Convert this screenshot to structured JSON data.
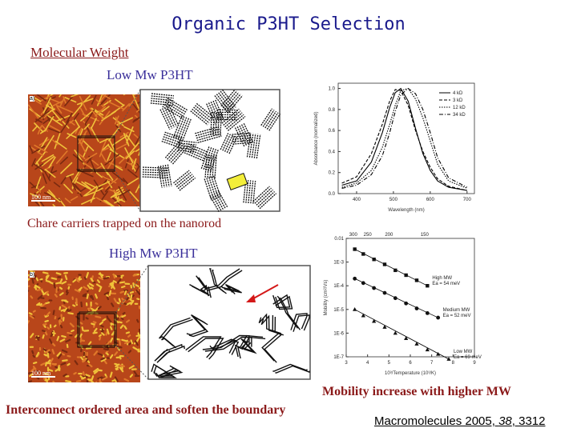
{
  "slide": {
    "title": "Organic P3HT Selection",
    "section": "Molecular Weight",
    "low_label": "Low Mw P3HT",
    "low_caption": "Chare carriers trapped on the nanorod",
    "high_label": "High Mw P3HT",
    "high_caption": "Interconnect ordered area and soften the boundary",
    "mobility_note": "Mobility increase with higher MW",
    "citation": {
      "journal": "Macromolecules 2005, ",
      "volume": "38",
      "pages": ", 3312"
    }
  },
  "figures": {
    "afm_a": {
      "panel": "a)",
      "scale": "100 nm"
    },
    "afm_b": {
      "panel": "b)",
      "scale": "100 nm"
    }
  },
  "chart_data": [
    {
      "type": "line",
      "xlabel": "Wavelength (nm)",
      "ylabel": "Absorbance (normalized)",
      "xlim": [
        350,
        720
      ],
      "ylim": [
        0.0,
        1.05
      ],
      "x_ticks": [
        400,
        500,
        600,
        700
      ],
      "y_ticks": [
        0.0,
        0.2,
        0.4,
        0.6,
        0.8,
        1.0
      ],
      "y_tick_labels": [
        "0.0",
        "0.2",
        "0.4",
        "0.6",
        "0.8",
        "1.0"
      ],
      "legend_position": "top-right",
      "series": [
        {
          "name": "4 kD",
          "x": [
            360,
            400,
            440,
            470,
            490,
            505,
            520,
            540,
            560,
            580,
            600,
            620,
            650,
            700
          ],
          "y": [
            0.08,
            0.12,
            0.3,
            0.58,
            0.82,
            0.96,
            1.0,
            0.88,
            0.62,
            0.38,
            0.22,
            0.12,
            0.06,
            0.03
          ]
        },
        {
          "name": "3 kD",
          "x": [
            360,
            400,
            440,
            470,
            490,
            505,
            520,
            540,
            560,
            580,
            600,
            620,
            650,
            700
          ],
          "y": [
            0.1,
            0.16,
            0.38,
            0.66,
            0.88,
            0.99,
            0.98,
            0.84,
            0.6,
            0.4,
            0.25,
            0.14,
            0.07,
            0.03
          ]
        },
        {
          "name": "12 kD",
          "x": [
            360,
            400,
            440,
            470,
            490,
            505,
            520,
            540,
            560,
            580,
            600,
            620,
            650,
            700
          ],
          "y": [
            0.06,
            0.1,
            0.22,
            0.44,
            0.66,
            0.84,
            0.98,
            1.0,
            0.9,
            0.72,
            0.5,
            0.28,
            0.12,
            0.05
          ]
        },
        {
          "name": "34 kD",
          "x": [
            360,
            400,
            440,
            470,
            490,
            505,
            520,
            540,
            560,
            580,
            600,
            620,
            650,
            700
          ],
          "y": [
            0.05,
            0.08,
            0.18,
            0.36,
            0.58,
            0.78,
            0.94,
            1.0,
            0.95,
            0.8,
            0.58,
            0.34,
            0.15,
            0.06
          ]
        }
      ]
    },
    {
      "type": "scatter",
      "xlabel": "10³/Temperature (10³/K)",
      "ylabel": "Mobility (cm²/Vs)",
      "x_axis_top_label": "",
      "top_ticks": [
        "300",
        "250",
        "200",
        "150"
      ],
      "y_scale": "log",
      "ylim": [
        1e-07,
        0.01
      ],
      "xlim": [
        3,
        9
      ],
      "x_ticks": [
        3,
        4,
        5,
        6,
        7,
        8,
        9
      ],
      "y_tick_labels": [
        "0.01",
        "1E-3",
        "1E-4",
        "1E-5",
        "1E-6",
        "1E-7"
      ],
      "series": [
        {
          "name": "High MW",
          "annotation": "Ea = 54 meV",
          "marker": "square",
          "x": [
            3.4,
            3.8,
            4.3,
            4.8,
            5.3,
            5.8,
            6.3,
            6.8
          ],
          "y": [
            0.0035,
            0.0022,
            0.0013,
            0.0008,
            0.00045,
            0.00028,
            0.00017,
            0.0001
          ]
        },
        {
          "name": "Medium MW",
          "annotation": "Ea = 52 meV",
          "marker": "circle",
          "x": [
            3.4,
            3.8,
            4.3,
            4.8,
            5.3,
            5.8,
            6.3,
            6.8,
            7.3
          ],
          "y": [
            0.0002,
            0.00013,
            8e-05,
            5e-05,
            3e-05,
            1.8e-05,
            1.1e-05,
            7e-06,
            4.5e-06
          ]
        },
        {
          "name": "Low MW",
          "annotation": "Ea = 69 meV",
          "marker": "triangle",
          "x": [
            3.4,
            3.8,
            4.3,
            4.8,
            5.3,
            5.8,
            6.3,
            6.8,
            7.3,
            7.8
          ],
          "y": [
            1e-05,
            5.5e-06,
            3.2e-06,
            1.8e-06,
            1e-06,
            6e-07,
            3.5e-07,
            2e-07,
            1.3e-07,
            8e-08
          ]
        }
      ]
    }
  ],
  "colors": {
    "title": "#1a1a8c",
    "section": "#8b1a1a",
    "labels": "#3a2f9a",
    "afm_base": "#b8461a",
    "afm_highlight": "#f0c23a"
  }
}
